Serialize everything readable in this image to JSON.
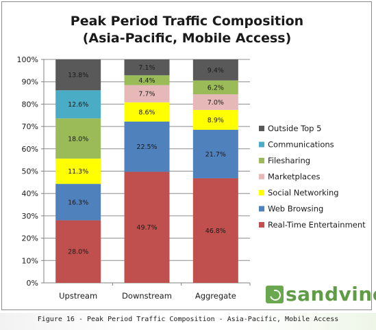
{
  "chart_data": {
    "type": "bar",
    "stacked": true,
    "title": "Peak Period Traffic Composition",
    "subtitle": "(Asia-Pacific, Mobile Access)",
    "categories": [
      "Upstream",
      "Downstream",
      "Aggregate"
    ],
    "ylim": [
      0,
      100
    ],
    "yticks": [
      "0%",
      "10%",
      "20%",
      "30%",
      "40%",
      "50%",
      "60%",
      "70%",
      "80%",
      "90%",
      "100%"
    ],
    "grid": true,
    "legend_position": "right",
    "series": [
      {
        "name": "Real-Time Entertainment",
        "color": "#c0504d",
        "values": [
          28.0,
          49.7,
          46.8
        ],
        "labels": [
          "28.0%",
          "49.7%",
          "46.8%"
        ]
      },
      {
        "name": "Web Browsing",
        "color": "#4f81bd",
        "values": [
          16.3,
          22.5,
          21.7
        ],
        "labels": [
          "16.3%",
          "22.5%",
          "21.7%"
        ]
      },
      {
        "name": "Social Networking",
        "color": "#ffff00",
        "values": [
          11.3,
          8.6,
          8.9
        ],
        "labels": [
          "11.3%",
          "8.6%",
          "8.9%"
        ]
      },
      {
        "name": "Marketplaces",
        "color": "#e6b9b8",
        "values": [
          0,
          7.7,
          7.0
        ],
        "labels": [
          "",
          "7.7%",
          "7.0%"
        ]
      },
      {
        "name": "Filesharing",
        "color": "#9bbb59",
        "values": [
          18.0,
          4.4,
          6.2
        ],
        "labels": [
          "18.0%",
          "4.4%",
          "6.2%"
        ]
      },
      {
        "name": "Communications",
        "color": "#4bacc6",
        "values": [
          12.6,
          0,
          0
        ],
        "labels": [
          "12.6%",
          "",
          ""
        ]
      },
      {
        "name": "Outside Top 5",
        "color": "#595959",
        "values": [
          13.8,
          7.1,
          9.4
        ],
        "labels": [
          "13.8%",
          "7.1%",
          "9.4%"
        ]
      }
    ],
    "legend_order": [
      "Outside Top 5",
      "Communications",
      "Filesharing",
      "Marketplaces",
      "Social Networking",
      "Web Browsing",
      "Real-Time Entertainment"
    ]
  },
  "logo": {
    "text": "sandvine",
    "color": "#5f9c45"
  },
  "caption": "Figure 16 - Peak Period Traffic Composition - Asia-Pacific, Mobile Access"
}
